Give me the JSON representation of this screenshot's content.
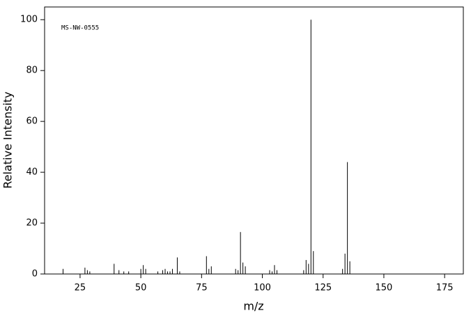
{
  "chart_data": {
    "type": "stem",
    "annotation": "MS-NW-0555",
    "x_label": "m/z",
    "y_label": "Relative Intensity",
    "color": "#000000",
    "x": [
      18,
      27,
      28,
      29,
      39,
      41,
      43,
      45,
      50,
      51,
      52,
      57,
      59,
      60,
      61,
      62,
      63,
      65,
      66,
      77,
      78,
      79,
      89,
      90,
      91,
      92,
      93,
      103,
      104,
      105,
      106,
      117,
      118,
      119,
      120,
      121,
      133,
      134,
      135,
      136
    ],
    "values": [
      2,
      2.5,
      1.5,
      1,
      4,
      1.5,
      1,
      1,
      2,
      3.5,
      2,
      1,
      1.5,
      2,
      1,
      1,
      2,
      6.5,
      1,
      7,
      2,
      3,
      2,
      1.5,
      16.5,
      4.5,
      3,
      1.5,
      1,
      3.5,
      1.5,
      1.5,
      5.5,
      4,
      100,
      9,
      2,
      8,
      44,
      5
    ],
    "xlim": [
      10.4,
      182.7
    ],
    "ylim": [
      0,
      105
    ],
    "xticks": [
      25,
      50,
      75,
      100,
      125,
      150,
      175
    ],
    "yticks": [
      0,
      20,
      40,
      60,
      80,
      100
    ]
  }
}
